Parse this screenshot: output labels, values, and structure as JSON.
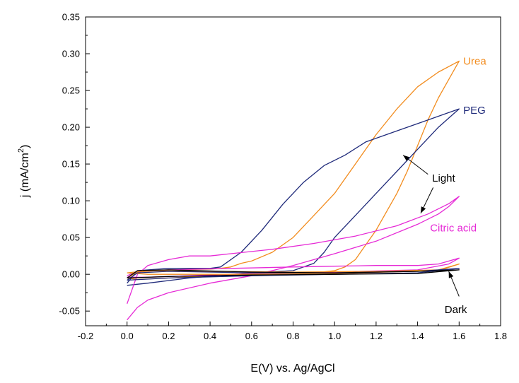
{
  "chart_data": {
    "type": "line",
    "xlabel": "E(V) vs. Ag/AgCl",
    "ylabel_main": "j (mA/cm",
    "ylabel_sup": "2",
    "ylabel_close": ")",
    "xlim": [
      -0.2,
      1.8
    ],
    "ylim": [
      -0.07,
      0.35
    ],
    "xticks": [
      -0.2,
      0.0,
      0.2,
      0.4,
      0.6,
      0.8,
      1.0,
      1.2,
      1.4,
      1.6,
      1.8
    ],
    "xtick_labels": [
      "-0.2",
      "0.0",
      "0.2",
      "0.4",
      "0.6",
      "0.8",
      "1.0",
      "1.2",
      "1.4",
      "1.6",
      "1.8"
    ],
    "yticks": [
      -0.05,
      0.0,
      0.05,
      0.1,
      0.15,
      0.2,
      0.25,
      0.3,
      0.35
    ],
    "ytick_labels": [
      "-0.05",
      "0.00",
      "0.05",
      "0.10",
      "0.15",
      "0.20",
      "0.25",
      "0.30",
      "0.35"
    ],
    "grid": false,
    "legend": "none",
    "series": [
      {
        "name": "Urea",
        "color": "#f28c1e",
        "points": [
          [
            0.0,
            -0.005
          ],
          [
            0.05,
            0.003
          ],
          [
            0.2,
            0.006
          ],
          [
            0.4,
            0.007
          ],
          [
            0.45,
            0.008
          ],
          [
            0.5,
            0.01
          ],
          [
            0.55,
            0.015
          ],
          [
            0.6,
            0.018
          ],
          [
            0.7,
            0.03
          ],
          [
            0.8,
            0.05
          ],
          [
            0.9,
            0.08
          ],
          [
            1.0,
            0.11
          ],
          [
            1.1,
            0.15
          ],
          [
            1.2,
            0.19
          ],
          [
            1.3,
            0.225
          ],
          [
            1.4,
            0.255
          ],
          [
            1.5,
            0.275
          ],
          [
            1.6,
            0.29
          ],
          [
            1.5,
            0.24
          ],
          [
            1.45,
            0.21
          ],
          [
            1.4,
            0.175
          ],
          [
            1.35,
            0.14
          ],
          [
            1.3,
            0.11
          ],
          [
            1.25,
            0.085
          ],
          [
            1.2,
            0.06
          ],
          [
            1.15,
            0.04
          ],
          [
            1.1,
            0.02
          ],
          [
            1.05,
            0.01
          ],
          [
            1.0,
            0.005
          ],
          [
            0.9,
            0.002
          ],
          [
            0.7,
            0.0
          ],
          [
            0.4,
            -0.002
          ],
          [
            0.2,
            -0.005
          ],
          [
            0.05,
            -0.007
          ],
          [
            0.0,
            -0.005
          ]
        ]
      },
      {
        "name": "PEG",
        "color": "#1f2a7a",
        "points": [
          [
            0.0,
            -0.012
          ],
          [
            0.05,
            0.005
          ],
          [
            0.2,
            0.008
          ],
          [
            0.4,
            0.008
          ],
          [
            0.45,
            0.01
          ],
          [
            0.55,
            0.03
          ],
          [
            0.65,
            0.06
          ],
          [
            0.75,
            0.095
          ],
          [
            0.85,
            0.125
          ],
          [
            0.95,
            0.148
          ],
          [
            1.05,
            0.162
          ],
          [
            1.15,
            0.18
          ],
          [
            1.3,
            0.195
          ],
          [
            1.45,
            0.21
          ],
          [
            1.6,
            0.225
          ],
          [
            1.5,
            0.2
          ],
          [
            1.4,
            0.17
          ],
          [
            1.3,
            0.14
          ],
          [
            1.2,
            0.11
          ],
          [
            1.1,
            0.08
          ],
          [
            1.0,
            0.05
          ],
          [
            0.95,
            0.03
          ],
          [
            0.9,
            0.015
          ],
          [
            0.8,
            0.005
          ],
          [
            0.6,
            0.002
          ],
          [
            0.3,
            -0.005
          ],
          [
            0.1,
            -0.012
          ],
          [
            0.0,
            -0.015
          ]
        ]
      },
      {
        "name": "Citric acid",
        "color": "#e62ad6",
        "points": [
          [
            0.0,
            -0.04
          ],
          [
            0.05,
            0.0
          ],
          [
            0.1,
            0.012
          ],
          [
            0.2,
            0.02
          ],
          [
            0.3,
            0.025
          ],
          [
            0.4,
            0.025
          ],
          [
            0.5,
            0.028
          ],
          [
            0.7,
            0.034
          ],
          [
            0.9,
            0.042
          ],
          [
            1.1,
            0.052
          ],
          [
            1.3,
            0.066
          ],
          [
            1.45,
            0.082
          ],
          [
            1.55,
            0.096
          ],
          [
            1.6,
            0.106
          ],
          [
            1.55,
            0.092
          ],
          [
            1.5,
            0.082
          ],
          [
            1.4,
            0.068
          ],
          [
            1.2,
            0.045
          ],
          [
            1.0,
            0.028
          ],
          [
            0.8,
            0.012
          ],
          [
            0.6,
            -0.002
          ],
          [
            0.4,
            -0.012
          ],
          [
            0.2,
            -0.025
          ],
          [
            0.1,
            -0.035
          ],
          [
            0.05,
            -0.045
          ],
          [
            0.0,
            -0.062
          ]
        ]
      },
      {
        "name": "Citric acid dark",
        "color": "#e62ad6",
        "points": [
          [
            0.0,
            -0.002
          ],
          [
            0.05,
            0.004
          ],
          [
            0.2,
            0.006
          ],
          [
            0.5,
            0.008
          ],
          [
            0.8,
            0.01
          ],
          [
            1.0,
            0.011
          ],
          [
            1.2,
            0.012
          ],
          [
            1.4,
            0.012
          ],
          [
            1.5,
            0.014
          ],
          [
            1.6,
            0.022
          ],
          [
            1.55,
            0.014
          ],
          [
            1.4,
            0.006
          ],
          [
            1.0,
            0.003
          ],
          [
            0.6,
            0.001
          ],
          [
            0.3,
            -0.002
          ],
          [
            0.1,
            -0.004
          ],
          [
            0.0,
            -0.004
          ]
        ]
      },
      {
        "name": "Urea dark",
        "color": "#f28c1e",
        "points": [
          [
            0.0,
            0.002
          ],
          [
            0.1,
            0.005
          ],
          [
            0.4,
            0.004
          ],
          [
            0.8,
            0.003
          ],
          [
            1.2,
            0.004
          ],
          [
            1.5,
            0.006
          ],
          [
            1.6,
            0.014
          ],
          [
            1.5,
            0.005
          ],
          [
            1.0,
            0.001
          ],
          [
            0.5,
            0.0
          ],
          [
            0.1,
            0.0
          ],
          [
            0.0,
            0.002
          ]
        ]
      },
      {
        "name": "PEG dark",
        "color": "#1f2a7a",
        "points": [
          [
            0.0,
            -0.008
          ],
          [
            0.05,
            0.002
          ],
          [
            0.2,
            0.004
          ],
          [
            0.6,
            0.002
          ],
          [
            1.0,
            0.002
          ],
          [
            1.4,
            0.004
          ],
          [
            1.6,
            0.008
          ],
          [
            1.4,
            0.002
          ],
          [
            1.0,
            0.0
          ],
          [
            0.6,
            -0.002
          ],
          [
            0.2,
            -0.005
          ],
          [
            0.0,
            -0.008
          ]
        ]
      },
      {
        "name": "Dark black",
        "color": "#000000",
        "points": [
          [
            0.0,
            -0.005
          ],
          [
            0.05,
            0.005
          ],
          [
            0.2,
            0.006
          ],
          [
            0.6,
            0.003
          ],
          [
            1.0,
            0.002
          ],
          [
            1.4,
            0.004
          ],
          [
            1.6,
            0.006
          ],
          [
            1.4,
            0.001
          ],
          [
            1.0,
            0.0
          ],
          [
            0.6,
            -0.001
          ],
          [
            0.2,
            -0.003
          ],
          [
            0.0,
            -0.005
          ]
        ]
      }
    ],
    "labels": [
      {
        "id": "urea",
        "text": "Urea",
        "color": "#f28c1e",
        "x": 1.62,
        "y": 0.29
      },
      {
        "id": "peg",
        "text": "PEG",
        "color": "#1f2a7a",
        "x": 1.62,
        "y": 0.223
      },
      {
        "id": "citric",
        "text": "Citric acid",
        "color": "#e62ad6",
        "x": 1.46,
        "y": 0.063
      },
      {
        "id": "light",
        "text": "Light",
        "color": "#000000",
        "x": 1.47,
        "y": 0.131
      },
      {
        "id": "dark",
        "text": "Dark",
        "color": "#000000",
        "x": 1.53,
        "y": -0.048
      }
    ],
    "arrows": [
      {
        "id": "light-arrow-1",
        "from": [
          1.45,
          0.136
        ],
        "to": [
          1.33,
          0.162
        ]
      },
      {
        "id": "light-arrow-2",
        "from": [
          1.475,
          0.118
        ],
        "to": [
          1.415,
          0.083
        ]
      },
      {
        "id": "dark-arrow",
        "from": [
          1.6,
          -0.03
        ],
        "to": [
          1.55,
          0.004
        ]
      }
    ]
  }
}
